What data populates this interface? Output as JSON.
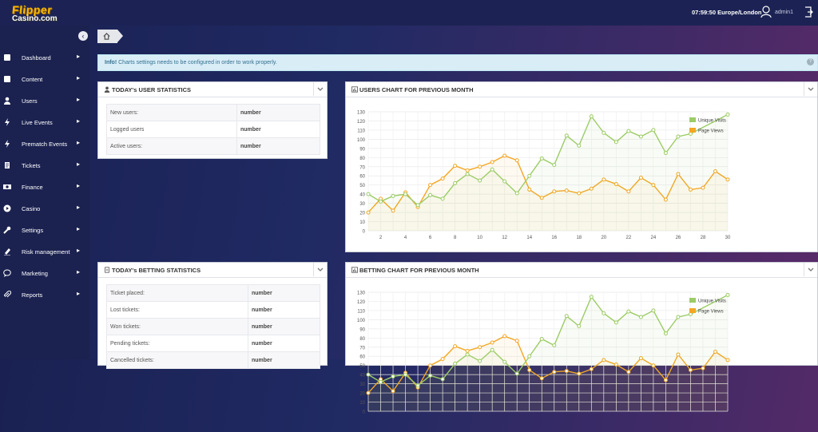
{
  "header": {
    "logo_line1": "Flipper",
    "logo_line2": "Casino.com",
    "clock": "07:59:50 Europe/London",
    "username": "admin1"
  },
  "sidebar": {
    "items": [
      {
        "label": "Dashboard",
        "icon": "book-icon"
      },
      {
        "label": "Content",
        "icon": "book-icon"
      },
      {
        "label": "Users",
        "icon": "user-icon"
      },
      {
        "label": "Live Events",
        "icon": "bolt-icon"
      },
      {
        "label": "Prematch Events",
        "icon": "bolt-icon"
      },
      {
        "label": "Tickets",
        "icon": "ticket-icon"
      },
      {
        "label": "Finance",
        "icon": "money-icon"
      },
      {
        "label": "Casino",
        "icon": "play-circle-icon"
      },
      {
        "label": "Settings",
        "icon": "wrench-icon"
      },
      {
        "label": "Risk management",
        "icon": "pencil-icon"
      },
      {
        "label": "Marketing",
        "icon": "speech-bubble-icon"
      },
      {
        "label": "Reports",
        "icon": "paperclip-icon"
      }
    ]
  },
  "info": {
    "bold": "Info!",
    "text": " Charts settings needs to be configured in order to work properly."
  },
  "user_stats": {
    "title": "TODAY's USER STATISTICS",
    "rows": [
      {
        "label": "New users:",
        "value": "number"
      },
      {
        "label": "Logged users",
        "value": "number"
      },
      {
        "label": "Active users:",
        "value": "number"
      }
    ]
  },
  "betting_stats": {
    "title": "TODAY's BETTING STATISTICS",
    "rows": [
      {
        "label": "Ticket placed:",
        "value": "number"
      },
      {
        "label": "Lost tickets:",
        "value": "number"
      },
      {
        "label": "Won tickets:",
        "value": "number"
      },
      {
        "label": "Pending tickets:",
        "value": "number"
      },
      {
        "label": "Cancelled tickets:",
        "value": "number"
      }
    ]
  },
  "users_chart_title": "USERS CHART FOR PREVIOUS MONTH",
  "betting_chart_title": "BETTING CHART FOR PREVIOUS MONTH",
  "colors": {
    "unique": "#9ccc65",
    "pageviews": "#f5a623",
    "accent": "#1c2354"
  },
  "chart_data": [
    {
      "type": "line",
      "title": "USERS CHART FOR PREVIOUS MONTH",
      "x": [
        1,
        2,
        3,
        4,
        5,
        6,
        7,
        8,
        9,
        10,
        11,
        12,
        13,
        14,
        15,
        16,
        17,
        18,
        19,
        20,
        21,
        22,
        23,
        24,
        25,
        26,
        27,
        28,
        29,
        30
      ],
      "xticks": [
        2,
        4,
        6,
        8,
        10,
        12,
        14,
        16,
        18,
        20,
        22,
        24,
        26,
        28,
        30
      ],
      "ylim": [
        0,
        130
      ],
      "yticks": [
        0,
        10,
        20,
        30,
        40,
        50,
        60,
        70,
        80,
        90,
        100,
        110,
        120,
        130
      ],
      "legend": "top-right",
      "series": [
        {
          "name": "Unique Visits",
          "color": "#9ccc65",
          "values": [
            40,
            32,
            38,
            40,
            28,
            39,
            35,
            52,
            62,
            55,
            67,
            54,
            41,
            60,
            79,
            72,
            104,
            93,
            125,
            107,
            97,
            109,
            103,
            110,
            85,
            103,
            106,
            null,
            null,
            127
          ]
        },
        {
          "name": "Page Views",
          "color": "#f5a623",
          "values": [
            20,
            35,
            22,
            42,
            26,
            50,
            57,
            71,
            66,
            70,
            75,
            82,
            77,
            45,
            36,
            43,
            44,
            41,
            46,
            56,
            51,
            43,
            58,
            50,
            34,
            62,
            45,
            47,
            65,
            56
          ]
        }
      ]
    },
    {
      "type": "line",
      "title": "BETTING CHART FOR PREVIOUS MONTH",
      "x": [
        1,
        2,
        3,
        4,
        5,
        6,
        7,
        8,
        9,
        10,
        11,
        12,
        13,
        14,
        15,
        16,
        17,
        18,
        19,
        20,
        21,
        22,
        23,
        24,
        25,
        26,
        27,
        28,
        29,
        30
      ],
      "ylim": [
        0,
        130
      ],
      "yticks": [
        0,
        10,
        20,
        30,
        40,
        50,
        60,
        70,
        80,
        90,
        100,
        110,
        120,
        130
      ],
      "legend": "top-right",
      "series": [
        {
          "name": "Unique Visits",
          "color": "#9ccc65",
          "values": [
            40,
            32,
            38,
            40,
            28,
            39,
            35,
            52,
            62,
            55,
            67,
            54,
            41,
            60,
            79,
            72,
            104,
            93,
            125,
            107,
            97,
            109,
            103,
            110,
            85,
            103,
            106,
            null,
            null,
            127
          ]
        },
        {
          "name": "Page Views",
          "color": "#f5a623",
          "values": [
            20,
            35,
            22,
            42,
            26,
            50,
            57,
            71,
            66,
            70,
            75,
            82,
            77,
            45,
            36,
            43,
            44,
            41,
            46,
            56,
            51,
            43,
            58,
            50,
            34,
            62,
            45,
            47,
            65,
            56
          ]
        }
      ]
    }
  ]
}
